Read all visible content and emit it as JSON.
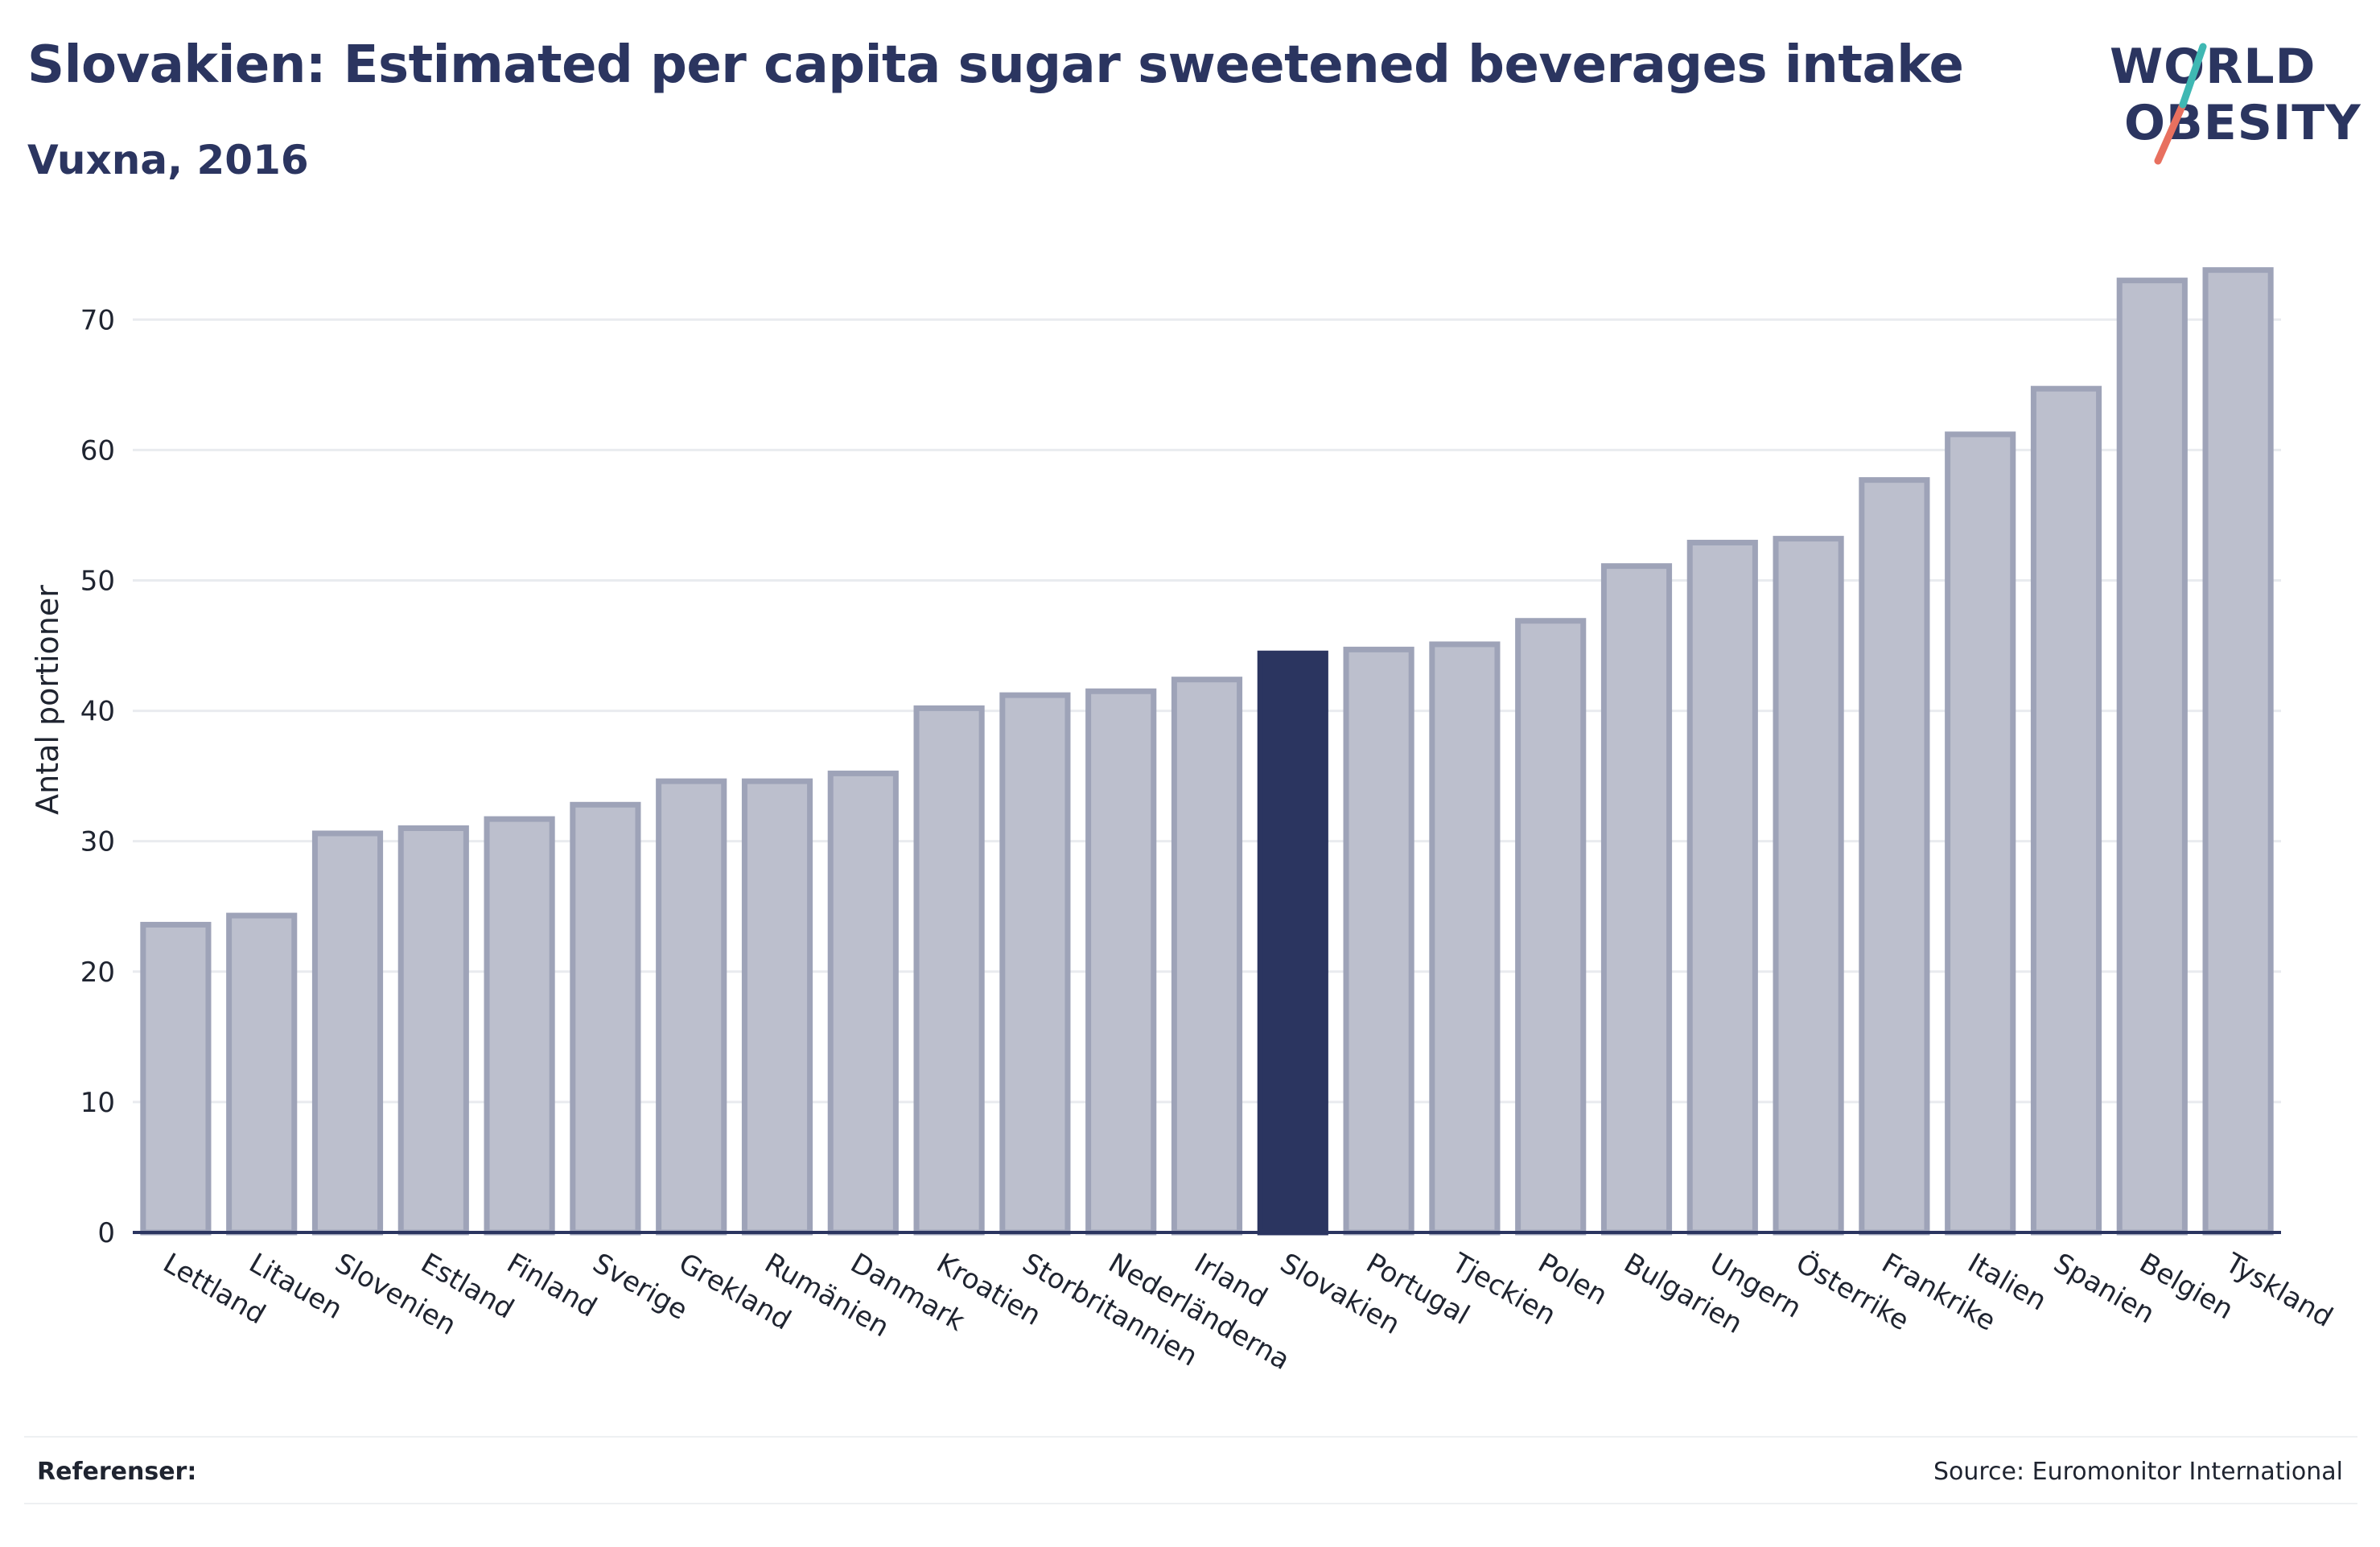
{
  "header": {
    "title": "Slovakien: Estimated per capita sugar sweetened beverages intake",
    "subtitle": "Vuxna, 2016"
  },
  "logo": {
    "line1": "WORLD",
    "line2": "OBESITY",
    "colors": {
      "teal": "#3fb8b3",
      "coral": "#e8705f",
      "navy": "#2b3560"
    }
  },
  "footer": {
    "references_label": "Referenser:",
    "source": "Source: Euromonitor International"
  },
  "colors": {
    "bar_fill": "#bcbfcd",
    "bar_stroke": "#9ea3b8",
    "highlight": "#2b3560",
    "grid": "#e9ebef",
    "axis": "#2b3560",
    "text": "#1f2430"
  },
  "chart_data": {
    "type": "bar",
    "ylabel": "Antal portioner",
    "ylim": [
      0,
      76
    ],
    "yticks": [
      0,
      10,
      20,
      30,
      40,
      50,
      60,
      70
    ],
    "grid": true,
    "highlight": "Slovakien",
    "categories": [
      "Lettland",
      "Litauen",
      "Slovenien",
      "Estland",
      "Finland",
      "Sverige",
      "Grekland",
      "Rumänien",
      "Danmark",
      "Kroatien",
      "Storbritannien",
      "Nederländerna",
      "Irland",
      "Slovakien",
      "Portugal",
      "Tjeckien",
      "Polen",
      "Bulgarien",
      "Ungern",
      "Österrike",
      "Frankrike",
      "Italien",
      "Spanien",
      "Belgien",
      "Tyskland"
    ],
    "values": [
      23.6,
      24.3,
      30.6,
      31.0,
      31.7,
      32.8,
      34.6,
      34.6,
      35.2,
      40.2,
      41.2,
      41.5,
      42.4,
      44.4,
      44.7,
      45.1,
      46.9,
      51.1,
      52.9,
      53.2,
      57.7,
      61.2,
      64.7,
      73.0,
      73.8
    ]
  }
}
